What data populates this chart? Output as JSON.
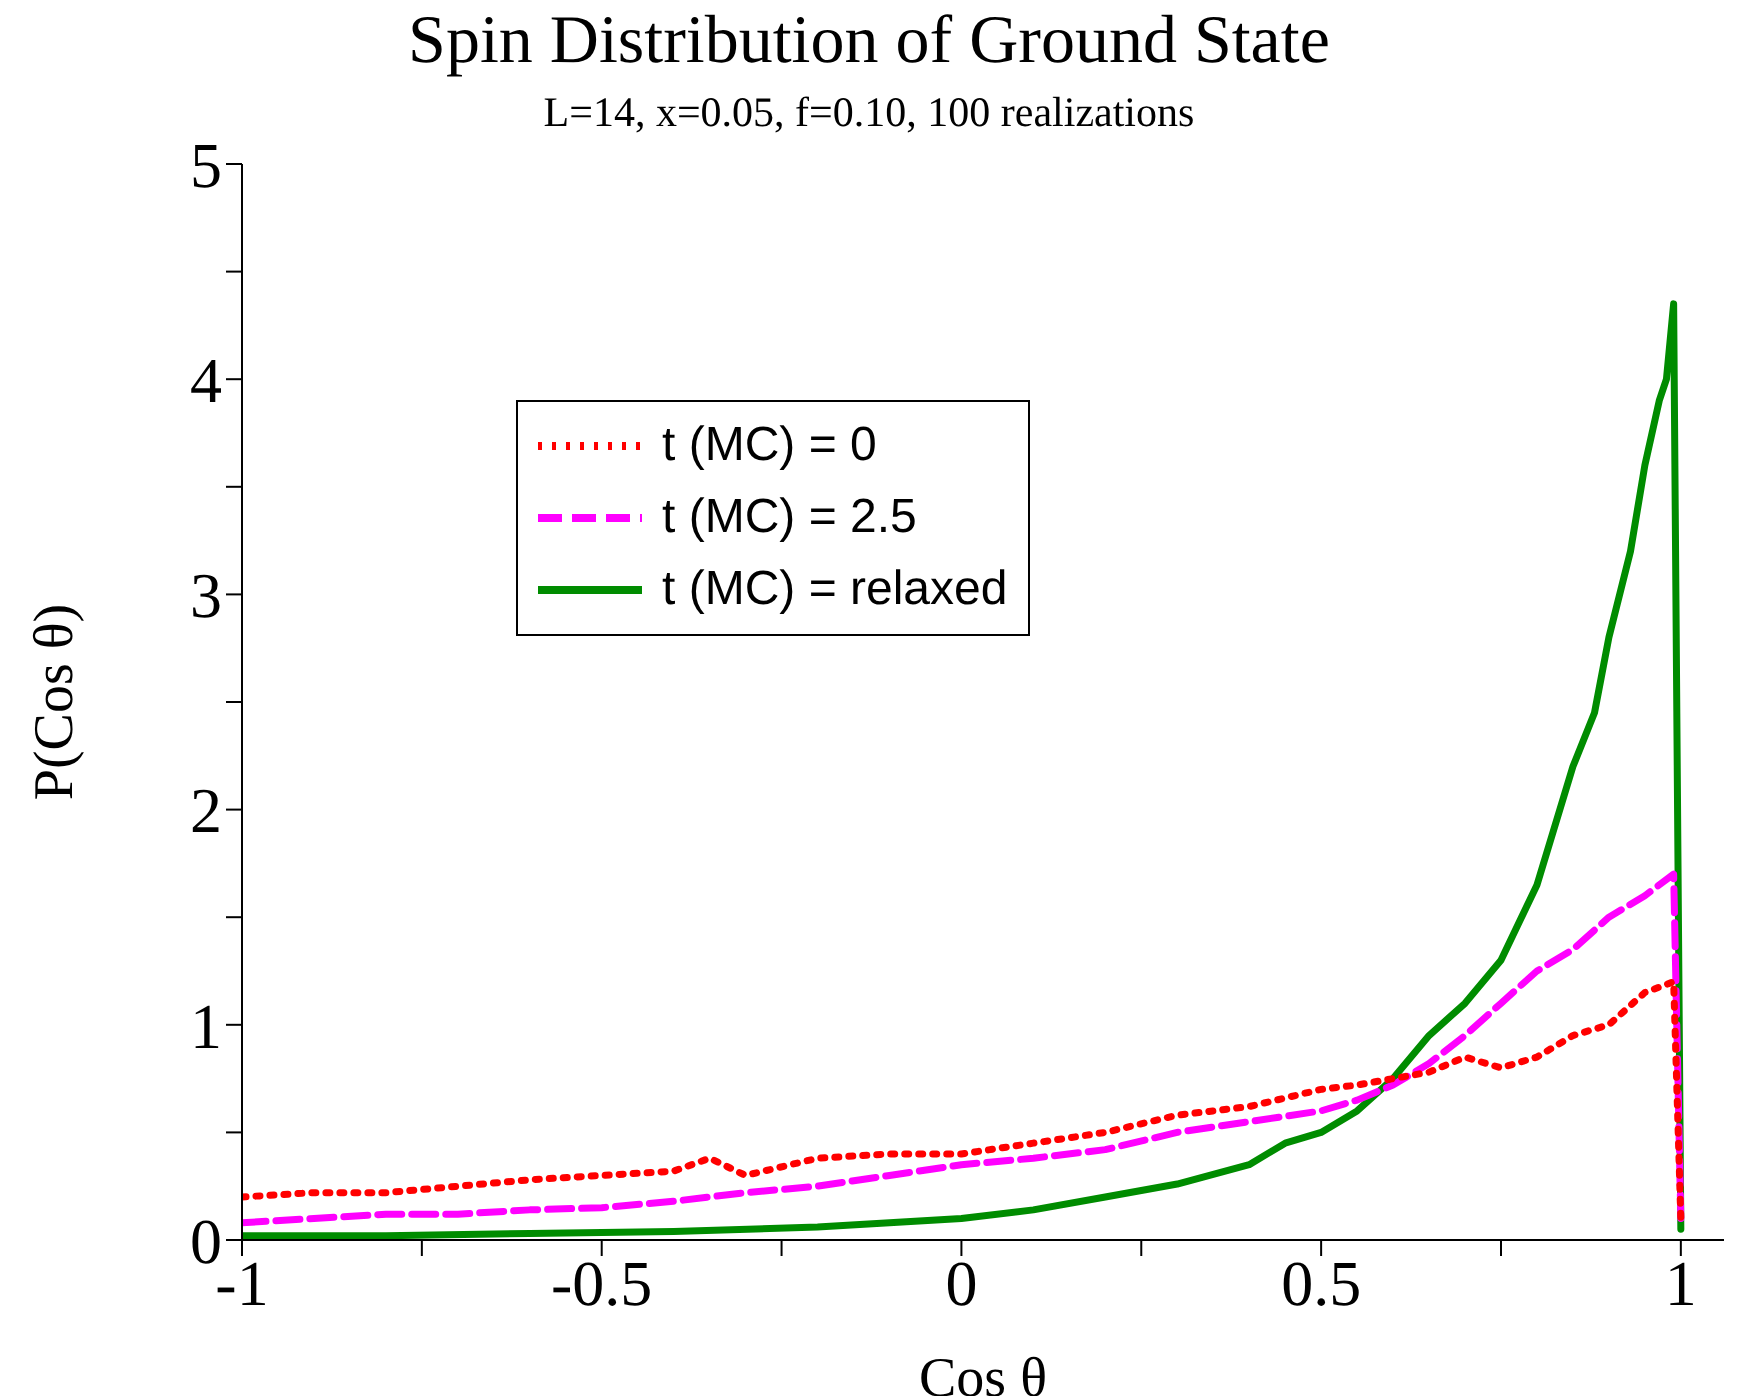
{
  "chart_data": {
    "type": "line",
    "title": "Spin Distribution of Ground State",
    "subtitle": "L=14,  x=0.05, f=0.10, 100 realizations",
    "xlabel": "Cos θ",
    "ylabel": "P(Cos θ)",
    "xlim": [
      -1,
      1.06
    ],
    "xticks": [
      -1,
      {
        "value": -0.75,
        "label": null
      },
      -0.5,
      {
        "value": -0.25,
        "label": null
      },
      0,
      {
        "value": 0.25,
        "label": null
      },
      0.5,
      {
        "value": 0.75,
        "label": null
      },
      1
    ],
    "ylim": [
      0,
      5
    ],
    "yticks": [
      0,
      {
        "value": 0.5,
        "label": null
      },
      1,
      {
        "value": 1.5,
        "label": null
      },
      2,
      {
        "value": 2.5,
        "label": null
      },
      3,
      {
        "value": 3.5,
        "label": null
      },
      4,
      {
        "value": 4.5,
        "label": null
      },
      5
    ],
    "legend": "top left",
    "marker": "none",
    "series": [
      {
        "name": "t (MC) = 0",
        "color": "#ff0000",
        "line_style": "dotted",
        "x": [
          -1,
          -0.9,
          -0.8,
          -0.7,
          -0.6,
          -0.5,
          -0.4,
          -0.35,
          -0.3,
          -0.2,
          -0.1,
          0,
          0.1,
          0.2,
          0.3,
          0.4,
          0.5,
          0.55,
          0.6,
          0.65,
          0.7,
          0.75,
          0.8,
          0.85,
          0.9,
          0.95,
          0.99,
          1.0
        ],
        "values": [
          0.2,
          0.22,
          0.22,
          0.25,
          0.28,
          0.3,
          0.32,
          0.38,
          0.3,
          0.38,
          0.4,
          0.4,
          0.45,
          0.5,
          0.58,
          0.62,
          0.7,
          0.72,
          0.75,
          0.78,
          0.85,
          0.8,
          0.85,
          0.95,
          1.0,
          1.15,
          1.2,
          0.1
        ]
      },
      {
        "name": "t (MC) = 2.5",
        "color": "#ff00ff",
        "line_style": "dashed",
        "x": [
          -1,
          -0.9,
          -0.8,
          -0.7,
          -0.6,
          -0.5,
          -0.4,
          -0.3,
          -0.2,
          -0.1,
          0,
          0.1,
          0.2,
          0.3,
          0.4,
          0.5,
          0.55,
          0.6,
          0.65,
          0.7,
          0.75,
          0.8,
          0.85,
          0.9,
          0.95,
          0.99,
          1.0
        ],
        "values": [
          0.08,
          0.1,
          0.12,
          0.12,
          0.14,
          0.15,
          0.18,
          0.22,
          0.25,
          0.3,
          0.35,
          0.38,
          0.42,
          0.5,
          0.55,
          0.6,
          0.65,
          0.72,
          0.82,
          0.95,
          1.1,
          1.25,
          1.35,
          1.5,
          1.6,
          1.7,
          0.1
        ]
      },
      {
        "name": "t (MC) = relaxed",
        "color": "#008c00",
        "line_style": "solid",
        "x": [
          -1,
          -0.8,
          -0.6,
          -0.4,
          -0.2,
          0,
          0.1,
          0.2,
          0.3,
          0.4,
          0.45,
          0.5,
          0.55,
          0.6,
          0.65,
          0.7,
          0.75,
          0.8,
          0.85,
          0.88,
          0.9,
          0.93,
          0.95,
          0.97,
          0.98,
          0.99,
          1.0
        ],
        "values": [
          0.02,
          0.02,
          0.03,
          0.04,
          0.06,
          0.1,
          0.14,
          0.2,
          0.26,
          0.35,
          0.45,
          0.5,
          0.6,
          0.75,
          0.95,
          1.1,
          1.3,
          1.65,
          2.2,
          2.45,
          2.8,
          3.2,
          3.6,
          3.9,
          4.0,
          4.35,
          0.05
        ]
      }
    ]
  }
}
